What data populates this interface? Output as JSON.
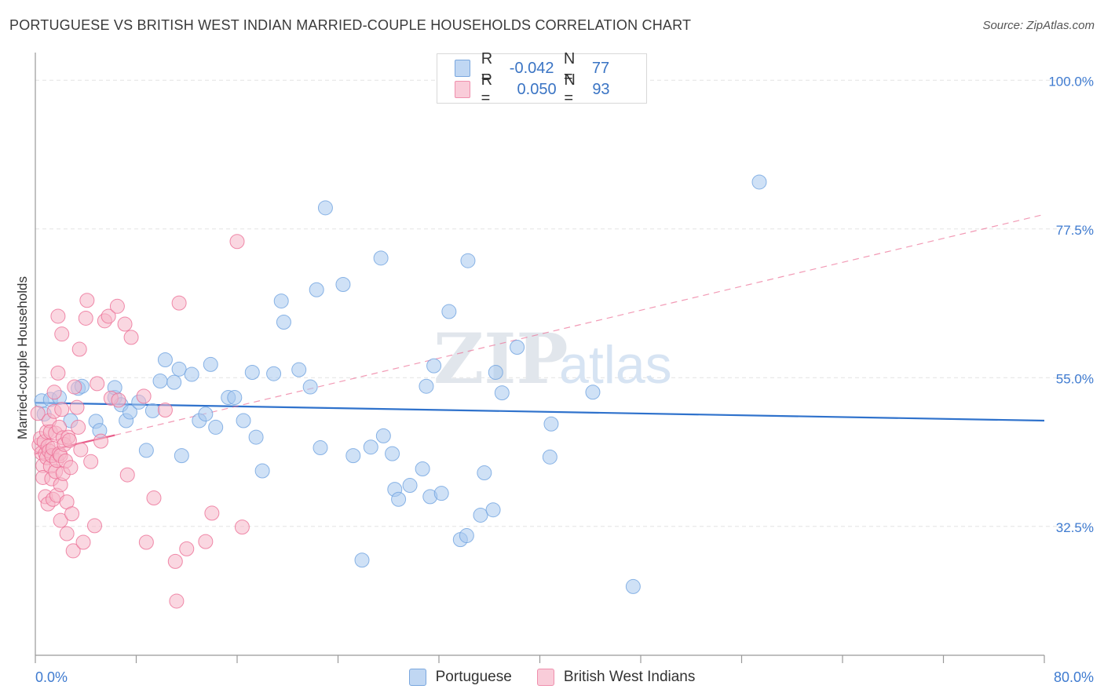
{
  "title": "PORTUGUESE VS BRITISH WEST INDIAN MARRIED-COUPLE HOUSEHOLDS CORRELATION CHART",
  "source": "Source: ZipAtlas.com",
  "watermark": {
    "zip": "ZIP",
    "atlas": "atlas"
  },
  "legend": {
    "rows": [
      {
        "r_label": "R =",
        "r_value": "-0.042",
        "n_label": "N =",
        "n_value": "77",
        "color": "#a8c8ef"
      },
      {
        "r_label": "R =",
        "r_value": "0.050",
        "n_label": "N =",
        "n_value": "93",
        "color": "#f5b7c9"
      }
    ]
  },
  "bottom_legend": [
    {
      "label": "Portuguese",
      "color": "#a8c8ef"
    },
    {
      "label": "British West Indians",
      "color": "#f5b7c9"
    }
  ],
  "chart_data": {
    "type": "scatter",
    "title": "PORTUGUESE VS BRITISH WEST INDIAN MARRIED-COUPLE HOUSEHOLDS CORRELATION CHART",
    "xlabel": "",
    "ylabel": "Married-couple Households",
    "xlim": [
      0,
      80
    ],
    "ylim": [
      13,
      103
    ],
    "x_tick_labels": [
      "0.0%",
      "80.0%"
    ],
    "y_ticks": [
      32.5,
      55.0,
      77.5,
      100.0
    ],
    "y_tick_labels": [
      "32.5%",
      "55.0%",
      "77.5%",
      "100.0%"
    ],
    "grid": true,
    "series": [
      {
        "name": "Portuguese",
        "color": "#6fa3e0",
        "fill": "#a8c8ef",
        "trend": {
          "x": [
            0,
            80
          ],
          "y": [
            51.2,
            48.5
          ]
        },
        "points": [
          [
            0.5,
            51.5
          ],
          [
            0.7,
            49.5
          ],
          [
            1.2,
            51.7
          ],
          [
            1.9,
            52.0
          ],
          [
            2.8,
            48.5
          ],
          [
            3.4,
            53.4
          ],
          [
            3.7,
            53.7
          ],
          [
            4.8,
            48.4
          ],
          [
            5.1,
            47.0
          ],
          [
            6.3,
            52.0
          ],
          [
            6.3,
            53.5
          ],
          [
            6.8,
            50.9
          ],
          [
            7.2,
            48.5
          ],
          [
            7.5,
            49.8
          ],
          [
            8.2,
            51.3
          ],
          [
            8.8,
            44.0
          ],
          [
            9.3,
            50.0
          ],
          [
            9.9,
            54.5
          ],
          [
            10.3,
            57.7
          ],
          [
            11.0,
            54.3
          ],
          [
            11.4,
            56.3
          ],
          [
            11.6,
            43.2
          ],
          [
            12.4,
            55.5
          ],
          [
            13.0,
            48.5
          ],
          [
            13.5,
            49.5
          ],
          [
            13.9,
            57.0
          ],
          [
            14.3,
            47.5
          ],
          [
            15.3,
            52.0
          ],
          [
            15.8,
            52.0
          ],
          [
            16.5,
            48.5
          ],
          [
            17.2,
            55.8
          ],
          [
            17.5,
            46.0
          ],
          [
            18.0,
            40.9
          ],
          [
            18.9,
            55.6
          ],
          [
            19.5,
            66.6
          ],
          [
            19.7,
            63.4
          ],
          [
            20.9,
            56.2
          ],
          [
            21.8,
            53.6
          ],
          [
            22.3,
            68.3
          ],
          [
            22.6,
            44.4
          ],
          [
            23.0,
            80.7
          ],
          [
            24.4,
            69.1
          ],
          [
            25.2,
            43.2
          ],
          [
            25.9,
            27.4
          ],
          [
            26.6,
            44.5
          ],
          [
            27.4,
            73.1
          ],
          [
            27.6,
            46.2
          ],
          [
            28.3,
            43.5
          ],
          [
            28.5,
            38.1
          ],
          [
            28.8,
            36.6
          ],
          [
            29.7,
            38.7
          ],
          [
            30.7,
            41.2
          ],
          [
            31.0,
            53.7
          ],
          [
            31.3,
            37.0
          ],
          [
            31.6,
            56.8
          ],
          [
            32.2,
            37.5
          ],
          [
            32.8,
            65.0
          ],
          [
            33.7,
            30.5
          ],
          [
            34.2,
            31.1
          ],
          [
            34.3,
            72.7
          ],
          [
            35.3,
            34.2
          ],
          [
            35.6,
            40.6
          ],
          [
            36.3,
            35.0
          ],
          [
            36.5,
            55.8
          ],
          [
            37.0,
            52.7
          ],
          [
            38.2,
            59.6
          ],
          [
            40.8,
            43.0
          ],
          [
            40.9,
            48.0
          ],
          [
            44.2,
            52.8
          ],
          [
            47.4,
            23.4
          ],
          [
            57.4,
            84.6
          ]
        ]
      },
      {
        "name": "British West Indians",
        "color": "#ec6f96",
        "fill": "#f5b7c9",
        "trend": {
          "x": [
            0,
            6.3
          ],
          "y": [
            43.5,
            46.3
          ]
        },
        "trend_ext": {
          "x": [
            6.3,
            80
          ],
          "y": [
            46.3,
            79.7
          ]
        },
        "points": [
          [
            0.2,
            49.6
          ],
          [
            0.3,
            44.8
          ],
          [
            0.4,
            45.8
          ],
          [
            0.5,
            43.6
          ],
          [
            0.6,
            41.7
          ],
          [
            0.6,
            39.9
          ],
          [
            0.7,
            45.3
          ],
          [
            0.8,
            43.5
          ],
          [
            0.8,
            37.0
          ],
          [
            0.9,
            46.8
          ],
          [
            0.9,
            42.9
          ],
          [
            1.0,
            35.9
          ],
          [
            1.0,
            44.6
          ],
          [
            1.1,
            43.9
          ],
          [
            1.1,
            48.5
          ],
          [
            1.2,
            46.8
          ],
          [
            1.2,
            41.6
          ],
          [
            1.3,
            43.2
          ],
          [
            1.3,
            39.7
          ],
          [
            1.4,
            44.3
          ],
          [
            1.4,
            36.6
          ],
          [
            1.5,
            52.8
          ],
          [
            1.5,
            49.9
          ],
          [
            1.6,
            46.6
          ],
          [
            1.6,
            40.8
          ],
          [
            1.7,
            42.5
          ],
          [
            1.7,
            37.2
          ],
          [
            1.8,
            64.3
          ],
          [
            1.8,
            55.7
          ],
          [
            1.9,
            43.5
          ],
          [
            1.9,
            47.5
          ],
          [
            2.0,
            43.2
          ],
          [
            2.0,
            38.8
          ],
          [
            2.0,
            33.4
          ],
          [
            2.1,
            61.6
          ],
          [
            2.1,
            50.2
          ],
          [
            2.2,
            45.9
          ],
          [
            2.2,
            40.5
          ],
          [
            2.3,
            44.9
          ],
          [
            2.4,
            42.4
          ],
          [
            2.5,
            36.2
          ],
          [
            2.5,
            31.4
          ],
          [
            2.6,
            46.0
          ],
          [
            2.7,
            45.5
          ],
          [
            2.8,
            41.4
          ],
          [
            2.9,
            34.4
          ],
          [
            3.0,
            28.8
          ],
          [
            3.1,
            53.6
          ],
          [
            3.3,
            50.5
          ],
          [
            3.4,
            47.5
          ],
          [
            3.5,
            59.3
          ],
          [
            3.6,
            44.1
          ],
          [
            3.8,
            30.1
          ],
          [
            4.0,
            64.0
          ],
          [
            4.1,
            66.7
          ],
          [
            4.4,
            42.3
          ],
          [
            4.7,
            32.6
          ],
          [
            4.9,
            54.1
          ],
          [
            5.2,
            45.4
          ],
          [
            5.5,
            63.6
          ],
          [
            5.8,
            64.3
          ],
          [
            6.0,
            51.9
          ],
          [
            6.5,
            65.8
          ],
          [
            6.6,
            51.6
          ],
          [
            7.1,
            63.1
          ],
          [
            7.3,
            40.3
          ],
          [
            7.6,
            61.1
          ],
          [
            8.6,
            52.2
          ],
          [
            8.8,
            30.1
          ],
          [
            9.4,
            36.8
          ],
          [
            10.3,
            50.1
          ],
          [
            11.1,
            27.2
          ],
          [
            11.2,
            21.2
          ],
          [
            11.4,
            66.3
          ],
          [
            12.0,
            29.1
          ],
          [
            13.5,
            30.2
          ],
          [
            14.0,
            34.5
          ],
          [
            16.0,
            75.6
          ],
          [
            16.4,
            32.4
          ]
        ]
      }
    ]
  }
}
